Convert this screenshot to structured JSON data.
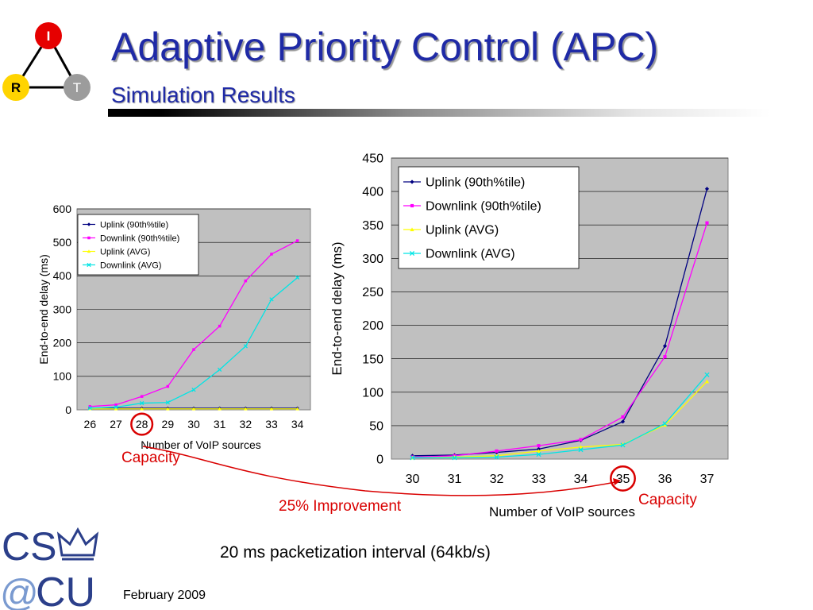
{
  "slide": {
    "title": "Adaptive Priority Control (APC)",
    "subtitle": "Simulation Results",
    "logo_nodes": [
      "I",
      "R",
      "T"
    ],
    "note": "20 ms packetization interval (64kb/s)",
    "date": "February 2009",
    "logo_text": "CS@CU",
    "improvement_label": "25% Improvement",
    "capacity_left_label": "Capacity",
    "capacity_right_label": "Capacity"
  },
  "colors": {
    "title": "#1f2aa6",
    "uplink_90": "#000080",
    "downlink_90": "#ff00ff",
    "uplink_avg": "#ffff00",
    "downlink_avg": "#00e5e5",
    "plot_bg": "#c0c0c0",
    "annotation": "#d90000",
    "logo_blue": "#2b3f8a"
  },
  "chart_data": [
    {
      "type": "line",
      "x": [
        26,
        27,
        28,
        29,
        30,
        31,
        32,
        33,
        34
      ],
      "xlabel": "Number of VoIP sources",
      "ylabel": "End-to-end delay (ms)",
      "ylim": [
        0,
        600
      ],
      "yticks": [
        0,
        100,
        200,
        300,
        400,
        500,
        600
      ],
      "grid": true,
      "legend": "top-left",
      "highlight_x": 28,
      "series": [
        {
          "name": "Uplink (90th%tile)",
          "values": [
            5,
            5,
            5,
            5,
            5,
            5,
            5,
            5,
            5
          ]
        },
        {
          "name": "Downlink (90th%tile)",
          "values": [
            10,
            15,
            40,
            70,
            180,
            250,
            385,
            465,
            505
          ]
        },
        {
          "name": "Uplink (AVG)",
          "values": [
            3,
            3,
            3,
            3,
            3,
            3,
            3,
            3,
            3
          ]
        },
        {
          "name": "Downlink (AVG)",
          "values": [
            5,
            8,
            20,
            22,
            60,
            120,
            190,
            330,
            395
          ]
        }
      ]
    },
    {
      "type": "line",
      "x": [
        30,
        31,
        32,
        33,
        34,
        35,
        36,
        37
      ],
      "xlabel": "Number of VoIP sources",
      "ylabel": "End-to-end delay (ms)",
      "ylim": [
        0,
        450
      ],
      "yticks": [
        0,
        50,
        100,
        150,
        200,
        250,
        300,
        350,
        400,
        450
      ],
      "grid": true,
      "legend": "top-left",
      "highlight_x": 35,
      "series": [
        {
          "name": "Uplink (90th%tile)",
          "values": [
            5,
            6,
            10,
            15,
            28,
            56,
            169,
            404
          ]
        },
        {
          "name": "Downlink (90th%tile)",
          "values": [
            3,
            5,
            12,
            20,
            29,
            63,
            153,
            353
          ]
        },
        {
          "name": "Uplink (AVG)",
          "values": [
            2,
            3,
            5,
            12,
            18,
            22,
            51,
            116
          ]
        },
        {
          "name": "Downlink (AVG)",
          "values": [
            2,
            2,
            3,
            7,
            14,
            21,
            53,
            126
          ]
        }
      ]
    }
  ]
}
